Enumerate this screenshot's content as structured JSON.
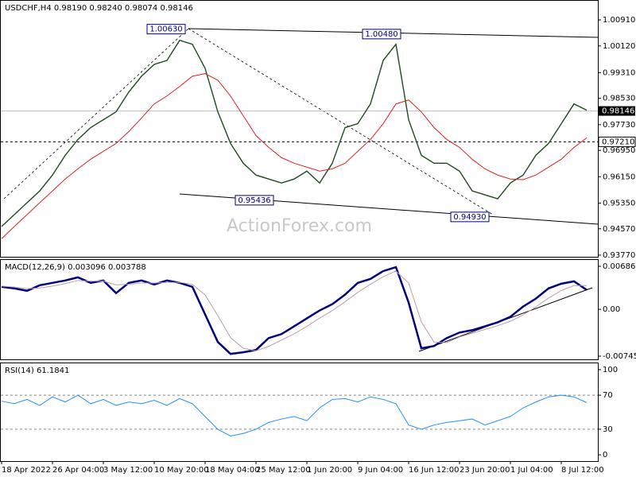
{
  "chart_data": [
    {
      "type": "line",
      "title": "USDCHF,H4  0.98190 0.98240 0.98074 0.98146",
      "watermark": "ActionForex.com",
      "categories": [
        "18 Apr 2022",
        null,
        null,
        null,
        "26 Apr 04:00",
        null,
        null,
        null,
        "3 May 12:00",
        null,
        null,
        null,
        "10 May 20:00",
        null,
        null,
        null,
        "18 May 04:00",
        null,
        null,
        null,
        "25 May 12:00",
        null,
        null,
        null,
        "1 Jun 20:00",
        null,
        null,
        null,
        "9 Jun 04:00",
        null,
        null,
        null,
        "16 Jun 12:00",
        null,
        null,
        null,
        "23 Jun 20:00",
        null,
        null,
        null,
        "1 Jul 04:00",
        null,
        null,
        null,
        "8 Jul 12:00",
        null,
        null
      ],
      "series": [
        {
          "color": "#1e4a1e",
          "values": [
            0.9464,
            0.95,
            0.9536,
            0.9572,
            0.962,
            0.968,
            0.9728,
            0.9764,
            0.9788,
            0.9812,
            0.9872,
            0.992,
            0.9956,
            0.9968,
            1.0029,
            1.0017,
            0.9944,
            0.9812,
            0.9716,
            0.9656,
            0.962,
            0.9608,
            0.9596,
            0.9608,
            0.9632,
            0.9596,
            0.9656,
            0.9764,
            0.9776,
            0.9836,
            0.9968,
            1.0017,
            0.9788,
            0.968,
            0.9656,
            0.9656,
            0.9632,
            0.9572,
            0.956,
            0.9548,
            0.9596,
            0.962,
            0.968,
            0.9716,
            0.9776,
            0.9836,
            0.9817
          ]
        },
        {
          "color": "#e02020",
          "values": [
            0.9427,
            0.9464,
            0.95,
            0.9536,
            0.9572,
            0.9608,
            0.9639,
            0.9668,
            0.9692,
            0.9716,
            0.9752,
            0.9793,
            0.9836,
            0.986,
            0.9889,
            0.992,
            0.9928,
            0.9908,
            0.986,
            0.98,
            0.974,
            0.9704,
            0.9673,
            0.9656,
            0.9644,
            0.9632,
            0.9639,
            0.9656,
            0.9692,
            0.9728,
            0.9776,
            0.9836,
            0.9848,
            0.9812,
            0.9764,
            0.9728,
            0.9704,
            0.9668,
            0.9639,
            0.962,
            0.9608,
            0.9606,
            0.962,
            0.9644,
            0.9668,
            0.9704,
            0.9733
          ]
        }
      ],
      "ylim": [
        0.9372,
        1.0149
      ],
      "yticks": [
        {
          "value": 1.0091,
          "label": "1.00910"
        },
        {
          "value": 1.0012,
          "label": "1.00120"
        },
        {
          "value": 0.9931,
          "label": "0.99310"
        },
        {
          "value": 0.9853,
          "label": "0.98530"
        },
        {
          "value": 0.9773,
          "label": "0.97730"
        },
        {
          "value": 0.9695,
          "label": "0.96950"
        },
        {
          "value": 0.9615,
          "label": "0.96150"
        },
        {
          "value": 0.9535,
          "label": "0.95350"
        },
        {
          "value": 0.9457,
          "label": "0.94570"
        },
        {
          "value": 0.9377,
          "label": "0.93770"
        }
      ],
      "level": {
        "value": 0.9721,
        "label": "0.97210"
      },
      "last_price": {
        "value": 0.98146,
        "label": "0.98146"
      },
      "annotations": [
        {
          "value": 1.0063,
          "label": "1.00630"
        },
        {
          "value": 1.0048,
          "label": "1.00480"
        },
        {
          "value": 0.95436,
          "label": "0.95436"
        },
        {
          "value": 0.9493,
          "label": "0.94930"
        }
      ]
    },
    {
      "type": "line",
      "title": "MACD(12,26,9) 0.003096 0.003788",
      "series": [
        {
          "color": "#000080",
          "values": [
            0.00359,
            0.00334,
            0.00296,
            0.00384,
            0.00422,
            0.0046,
            0.0051,
            0.00422,
            0.0046,
            0.00259,
            0.00422,
            0.0046,
            0.00397,
            0.0046,
            0.00422,
            0.00359,
            -0.0008,
            -0.0052,
            -0.00709,
            -0.00683,
            -0.00646,
            -0.00457,
            -0.00394,
            -0.00269,
            -0.00143,
            -0.00018,
            0.00083,
            0.00234,
            0.00422,
            0.00485,
            0.0061,
            0.00673,
            0.00108,
            -0.0062,
            -0.00583,
            -0.00457,
            -0.00369,
            -0.00331,
            -0.00269,
            -0.00206,
            -0.00118,
            0.00045,
            0.00171,
            0.00334,
            0.00409,
            0.00447,
            0.0031
          ]
        },
        {
          "color": "#b8a0a8",
          "values": [
            0.0037,
            0.00355,
            0.0033,
            0.0034,
            0.0037,
            0.0041,
            0.0046,
            0.0045,
            0.0045,
            0.0039,
            0.004,
            0.0042,
            0.0042,
            0.0043,
            0.0043,
            0.004,
            0.0023,
            -0.001,
            -0.0045,
            -0.0062,
            -0.0066,
            -0.0059,
            -0.0049,
            -0.0039,
            -0.0027,
            -0.0014,
            -0.0002,
            0.0012,
            0.0027,
            0.004,
            0.0052,
            0.0061,
            0.0042,
            -0.002,
            -0.0052,
            -0.0053,
            -0.0044,
            -0.0038,
            -0.0032,
            -0.0026,
            -0.0019,
            -0.0009,
            0.0004,
            0.0018,
            0.003,
            0.0038,
            0.00379
          ]
        }
      ],
      "ylim": [
        -0.00796,
        0.00787
      ],
      "yticks": [
        0.006861,
        {
          "value": 0,
          "label": "0.00"
        },
        -0.007454
      ]
    },
    {
      "type": "line",
      "title": "RSI(14) 61.1841",
      "series": [
        {
          "color": "#1e90ff",
          "values": [
            63,
            60,
            65,
            58,
            68,
            62,
            70,
            60,
            65,
            58,
            62,
            60,
            64,
            58,
            66,
            60,
            45,
            30,
            22,
            25,
            30,
            38,
            42,
            45,
            40,
            55,
            65,
            66,
            62,
            68,
            65,
            60,
            35,
            30,
            35,
            38,
            40,
            42,
            35,
            40,
            45,
            55,
            62,
            68,
            70,
            68,
            61.1841
          ]
        }
      ],
      "ylim": [
        -7.4,
        107.4
      ],
      "yticks": [
        100,
        70,
        30,
        0
      ],
      "levels": [
        70,
        30
      ]
    }
  ]
}
